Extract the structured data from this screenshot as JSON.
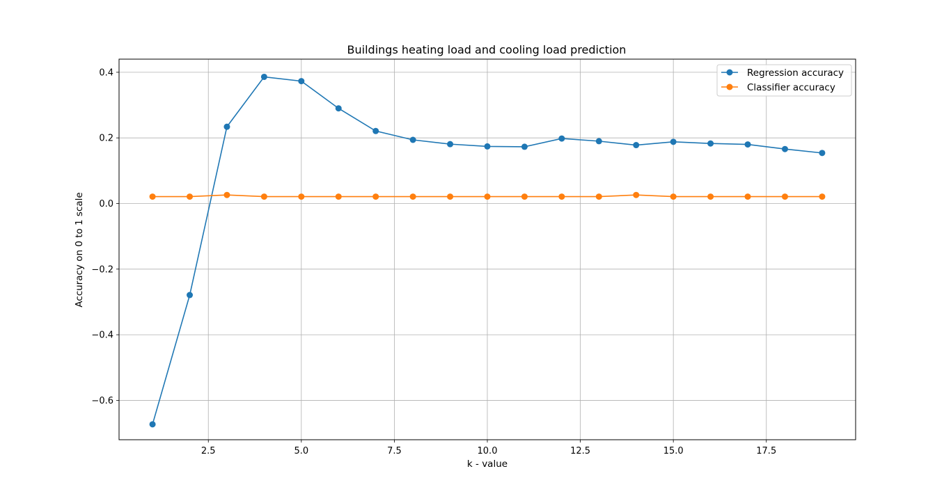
{
  "chart_data": {
    "type": "line",
    "title": "Buildings heating load and cooling load prediction",
    "xlabel": "k - value",
    "ylabel": "Accuracy on 0 to 1 scale",
    "xlim": [
      0.1,
      19.9
    ],
    "ylim": [
      -0.72,
      0.44
    ],
    "xticks": [
      2.5,
      5.0,
      7.5,
      10.0,
      12.5,
      15.0,
      17.5
    ],
    "xtick_labels": [
      "2.5",
      "5.0",
      "7.5",
      "10.0",
      "12.5",
      "15.0",
      "17.5"
    ],
    "yticks": [
      -0.6,
      -0.4,
      -0.2,
      0.0,
      0.2,
      0.4
    ],
    "ytick_labels": [
      "−0.6",
      "−0.4",
      "−0.2",
      "0.0",
      "0.2",
      "0.4"
    ],
    "grid": true,
    "legend_position": "top-right",
    "x": [
      1,
      2,
      3,
      4,
      5,
      6,
      7,
      8,
      9,
      10,
      11,
      12,
      13,
      14,
      15,
      16,
      17,
      18,
      19
    ],
    "series": [
      {
        "name": "Regression accuracy",
        "color": "#1f77b4",
        "values": [
          -0.673,
          -0.279,
          0.234,
          0.386,
          0.373,
          0.29,
          0.221,
          0.194,
          0.181,
          0.174,
          0.173,
          0.198,
          0.19,
          0.178,
          0.188,
          0.183,
          0.18,
          0.166,
          0.154
        ]
      },
      {
        "name": "Classifier accuracy",
        "color": "#ff7f0e",
        "values": [
          0.021,
          0.021,
          0.026,
          0.021,
          0.021,
          0.021,
          0.021,
          0.021,
          0.021,
          0.021,
          0.021,
          0.021,
          0.021,
          0.026,
          0.021,
          0.021,
          0.021,
          0.021,
          0.021
        ]
      }
    ]
  }
}
